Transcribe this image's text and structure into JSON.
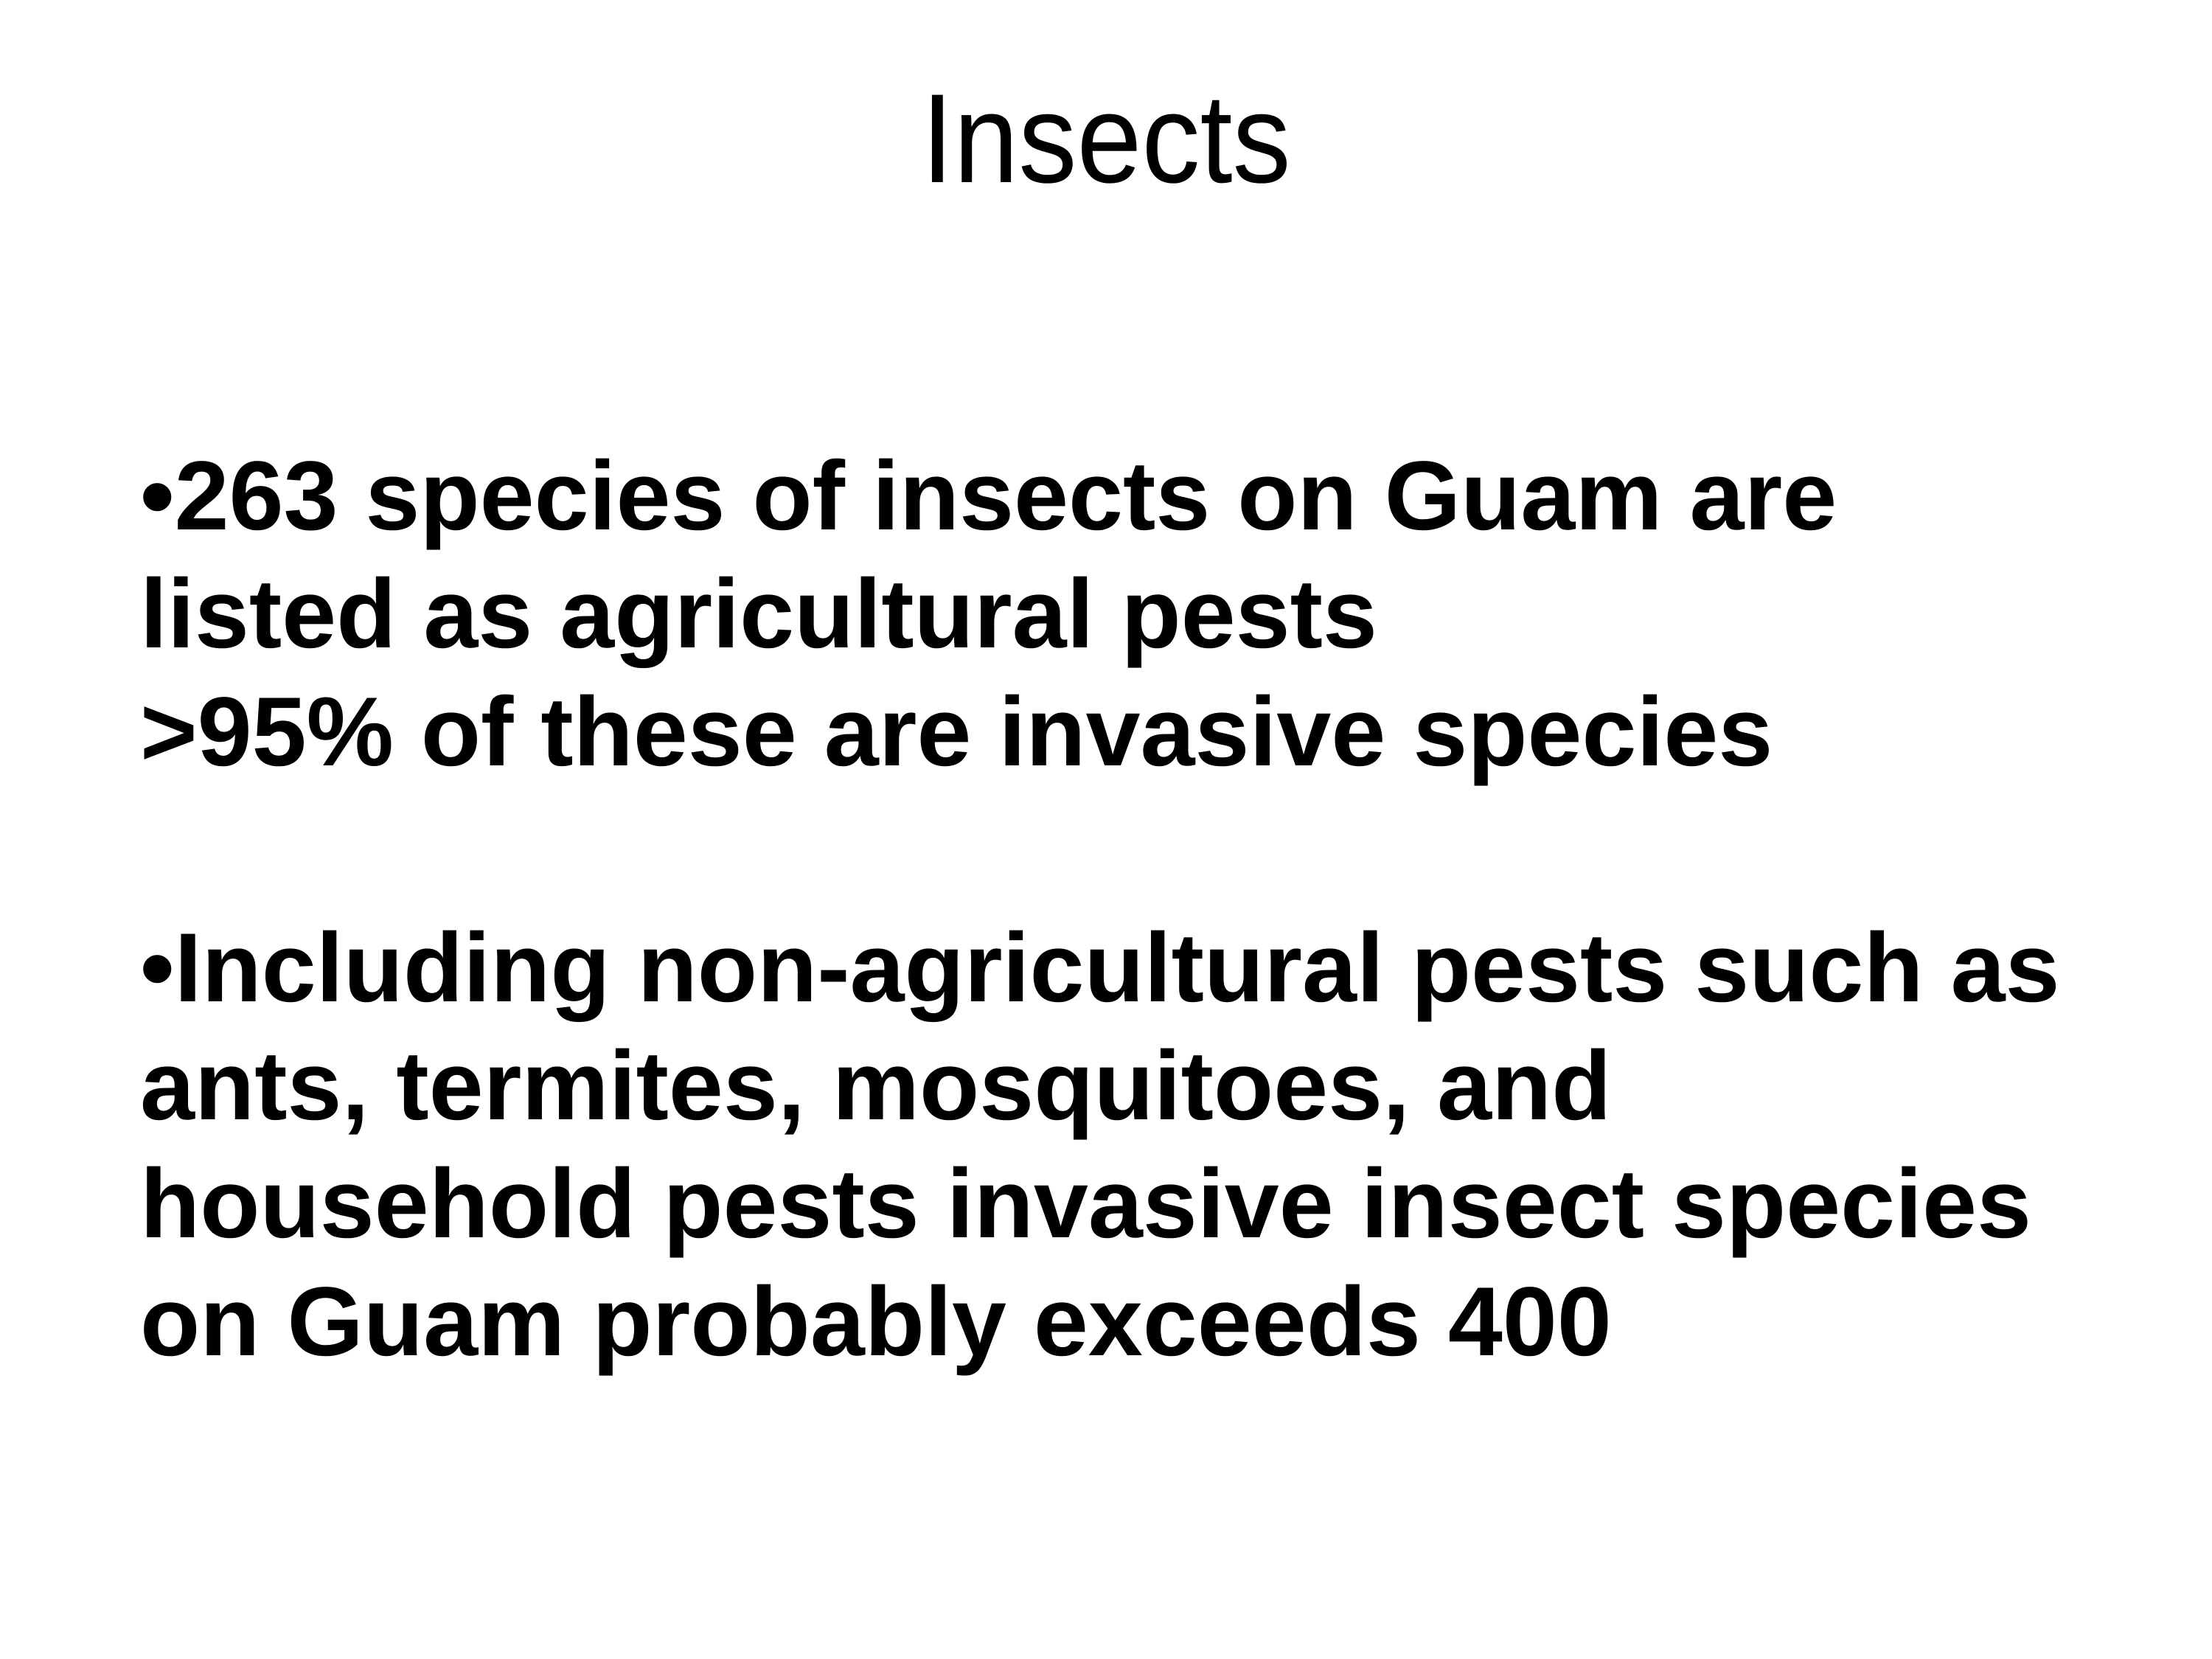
{
  "slide": {
    "title": "Insects",
    "colors": {
      "background": "#ffffff",
      "text": "#000000"
    },
    "bullets": [
      {
        "bullet": "•",
        "lines": [
          "263 species of insects on Guam are",
          "listed as agricultural pests",
          ">95% of these are invasive species"
        ]
      },
      {
        "bullet": "•",
        "lines": [
          "Including non-agricultural pests such as",
          "ants, termites, mosquitoes, and",
          "household pests invasive insect species",
          "on Guam probably exceeds 400"
        ]
      }
    ]
  }
}
